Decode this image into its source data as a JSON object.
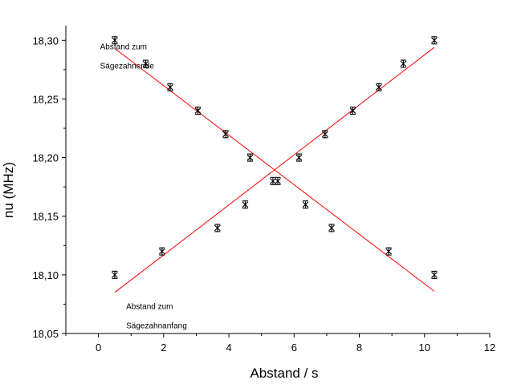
{
  "chart_data": {
    "type": "scatter",
    "xlabel": "Abstand / s",
    "ylabel": "nu (MHz)",
    "xlim": [
      -1,
      12
    ],
    "ylim": [
      18.05,
      18.3125
    ],
    "x_ticks": [
      0,
      2,
      4,
      6,
      8,
      10,
      12
    ],
    "x_tick_labels": [
      "0",
      "2",
      "4",
      "6",
      "8",
      "10",
      "12"
    ],
    "y_ticks": [
      18.05,
      18.1,
      18.15,
      18.2,
      18.25,
      18.3
    ],
    "y_tick_labels": [
      "18,05",
      "18,10",
      "18,15",
      "18,20",
      "18,25",
      "18,30"
    ],
    "grid": false,
    "legend": "none",
    "series": [
      {
        "x": [
          0.5,
          1.45,
          2.2,
          3.05,
          3.9,
          4.65,
          5.35,
          6.35,
          7.15,
          8.9,
          10.3
        ],
        "y": [
          18.3,
          18.28,
          18.26,
          18.24,
          18.22,
          18.2,
          18.18,
          18.16,
          18.14,
          18.12,
          18.1
        ],
        "marker": "asterisk",
        "fit": {
          "x": [
            0.5,
            10.3
          ],
          "y": [
            18.293,
            18.086
          ]
        }
      },
      {
        "x": [
          0.5,
          1.95,
          3.65,
          4.5,
          5.5,
          6.15,
          6.95,
          7.8,
          8.6,
          9.35,
          10.3
        ],
        "y": [
          18.1,
          18.12,
          18.14,
          18.16,
          18.18,
          18.2,
          18.22,
          18.24,
          18.26,
          18.28,
          18.3
        ],
        "marker": "asterisk",
        "fit": {
          "x": [
            0.5,
            10.3
          ],
          "y": [
            18.085,
            18.294
          ]
        }
      }
    ],
    "annotations": [
      {
        "lines": [
          "Abstand zum",
          "Sägezahnende"
        ],
        "x": 0.05,
        "y": 18.2925
      },
      {
        "lines": [
          "Abstand zum",
          "Sägezahnanfang"
        ],
        "x": 0.85,
        "y": 18.071
      }
    ],
    "colors": {
      "points": "#000000",
      "fit": "#ff0000",
      "axes": "#000000"
    }
  }
}
